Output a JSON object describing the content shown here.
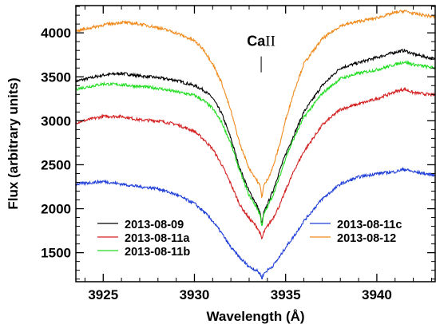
{
  "chart_data": {
    "type": "line",
    "title": "",
    "xlabel": "Wavelength (Å)",
    "ylabel": "Flux (arbitrary units)",
    "xlim": [
      3923.5,
      3943.2
    ],
    "ylim": [
      1170,
      4310
    ],
    "xticks": [
      3925,
      3930,
      3935,
      3940
    ],
    "yticks": [
      1500,
      2000,
      2500,
      3000,
      3500,
      4000
    ],
    "grid": false,
    "legend_placement": "lower, two columns",
    "annotation": {
      "element": "Ca",
      "ion": "II",
      "x": 3933.66,
      "y": 3850
    },
    "series": [
      {
        "name": "2013-08-09",
        "color": "#000000",
        "x": [
          3923.5,
          3925,
          3926,
          3927,
          3928,
          3929,
          3930,
          3930.5,
          3931,
          3931.5,
          3932,
          3932.5,
          3933,
          3933.4,
          3933.6,
          3933.7,
          3933.8,
          3934,
          3934.3,
          3934.7,
          3935,
          3935.5,
          3936,
          3937,
          3938,
          3939,
          3940,
          3941,
          3941.5,
          3942,
          3943.2
        ],
        "y": [
          3450,
          3520,
          3540,
          3510,
          3490,
          3460,
          3400,
          3350,
          3260,
          3080,
          2800,
          2450,
          2200,
          2050,
          1950,
          1820,
          1950,
          2050,
          2200,
          2450,
          2620,
          2860,
          3100,
          3400,
          3600,
          3660,
          3720,
          3780,
          3800,
          3760,
          3700
        ]
      },
      {
        "name": "2013-08-11a",
        "color": "#d42020",
        "x": [
          3923.5,
          3925,
          3926,
          3927,
          3928,
          3929,
          3930,
          3930.5,
          3931,
          3931.5,
          3932,
          3932.5,
          3933,
          3933.4,
          3933.6,
          3933.7,
          3933.8,
          3934,
          3934.3,
          3934.7,
          3935,
          3935.5,
          3936,
          3937,
          3938,
          3939,
          3940,
          3941,
          3941.5,
          3942,
          3943.2
        ],
        "y": [
          2980,
          3050,
          3050,
          3010,
          3000,
          2960,
          2880,
          2790,
          2680,
          2500,
          2280,
          2040,
          1890,
          1800,
          1720,
          1650,
          1730,
          1800,
          1890,
          2050,
          2210,
          2450,
          2650,
          2950,
          3130,
          3190,
          3250,
          3330,
          3360,
          3320,
          3290
        ]
      },
      {
        "name": "2013-08-11b",
        "color": "#22dd22",
        "x": [
          3923.5,
          3925,
          3926,
          3927,
          3928,
          3929,
          3930,
          3930.5,
          3931,
          3931.5,
          3932,
          3932.5,
          3933,
          3933.4,
          3933.6,
          3933.7,
          3933.8,
          3934,
          3934.3,
          3934.7,
          3935,
          3935.5,
          3936,
          3937,
          3938,
          3939,
          3940,
          3941,
          3941.5,
          3942,
          3943.2
        ],
        "y": [
          3360,
          3420,
          3410,
          3390,
          3370,
          3330,
          3290,
          3230,
          3140,
          2980,
          2740,
          2420,
          2150,
          2020,
          1930,
          1800,
          1930,
          2020,
          2150,
          2380,
          2580,
          2820,
          3040,
          3310,
          3480,
          3540,
          3580,
          3640,
          3670,
          3640,
          3600
        ]
      },
      {
        "name": "2013-08-11c",
        "color": "#1f3fd8",
        "x": [
          3923.5,
          3925,
          3926,
          3927,
          3928,
          3929,
          3930,
          3930.5,
          3931,
          3931.5,
          3932,
          3932.5,
          3933,
          3933.4,
          3933.6,
          3933.7,
          3933.8,
          3934,
          3934.3,
          3934.7,
          3935,
          3935.5,
          3936,
          3937,
          3938,
          3939,
          3940,
          3941,
          3941.5,
          3942,
          3943.2
        ],
        "y": [
          2280,
          2310,
          2280,
          2250,
          2230,
          2160,
          2060,
          1970,
          1860,
          1720,
          1560,
          1440,
          1340,
          1300,
          1260,
          1210,
          1260,
          1300,
          1350,
          1460,
          1560,
          1700,
          1860,
          2110,
          2280,
          2360,
          2400,
          2420,
          2450,
          2420,
          2380
        ]
      },
      {
        "name": "2013-08-12",
        "color": "#f08a1c",
        "x": [
          3923.5,
          3925,
          3926,
          3927,
          3928,
          3929,
          3930,
          3930.5,
          3931,
          3931.5,
          3932,
          3932.5,
          3933,
          3933.4,
          3933.6,
          3933.7,
          3933.8,
          3934,
          3934.3,
          3934.7,
          3935,
          3935.5,
          3936,
          3937,
          3938,
          3939,
          3940,
          3941,
          3941.5,
          3942,
          3943.2
        ],
        "y": [
          4020,
          4090,
          4120,
          4100,
          4060,
          4000,
          3910,
          3810,
          3650,
          3430,
          3110,
          2730,
          2460,
          2330,
          2260,
          2130,
          2260,
          2330,
          2470,
          2750,
          3010,
          3360,
          3650,
          3930,
          4080,
          4130,
          4170,
          4230,
          4250,
          4220,
          4180
        ]
      }
    ]
  }
}
